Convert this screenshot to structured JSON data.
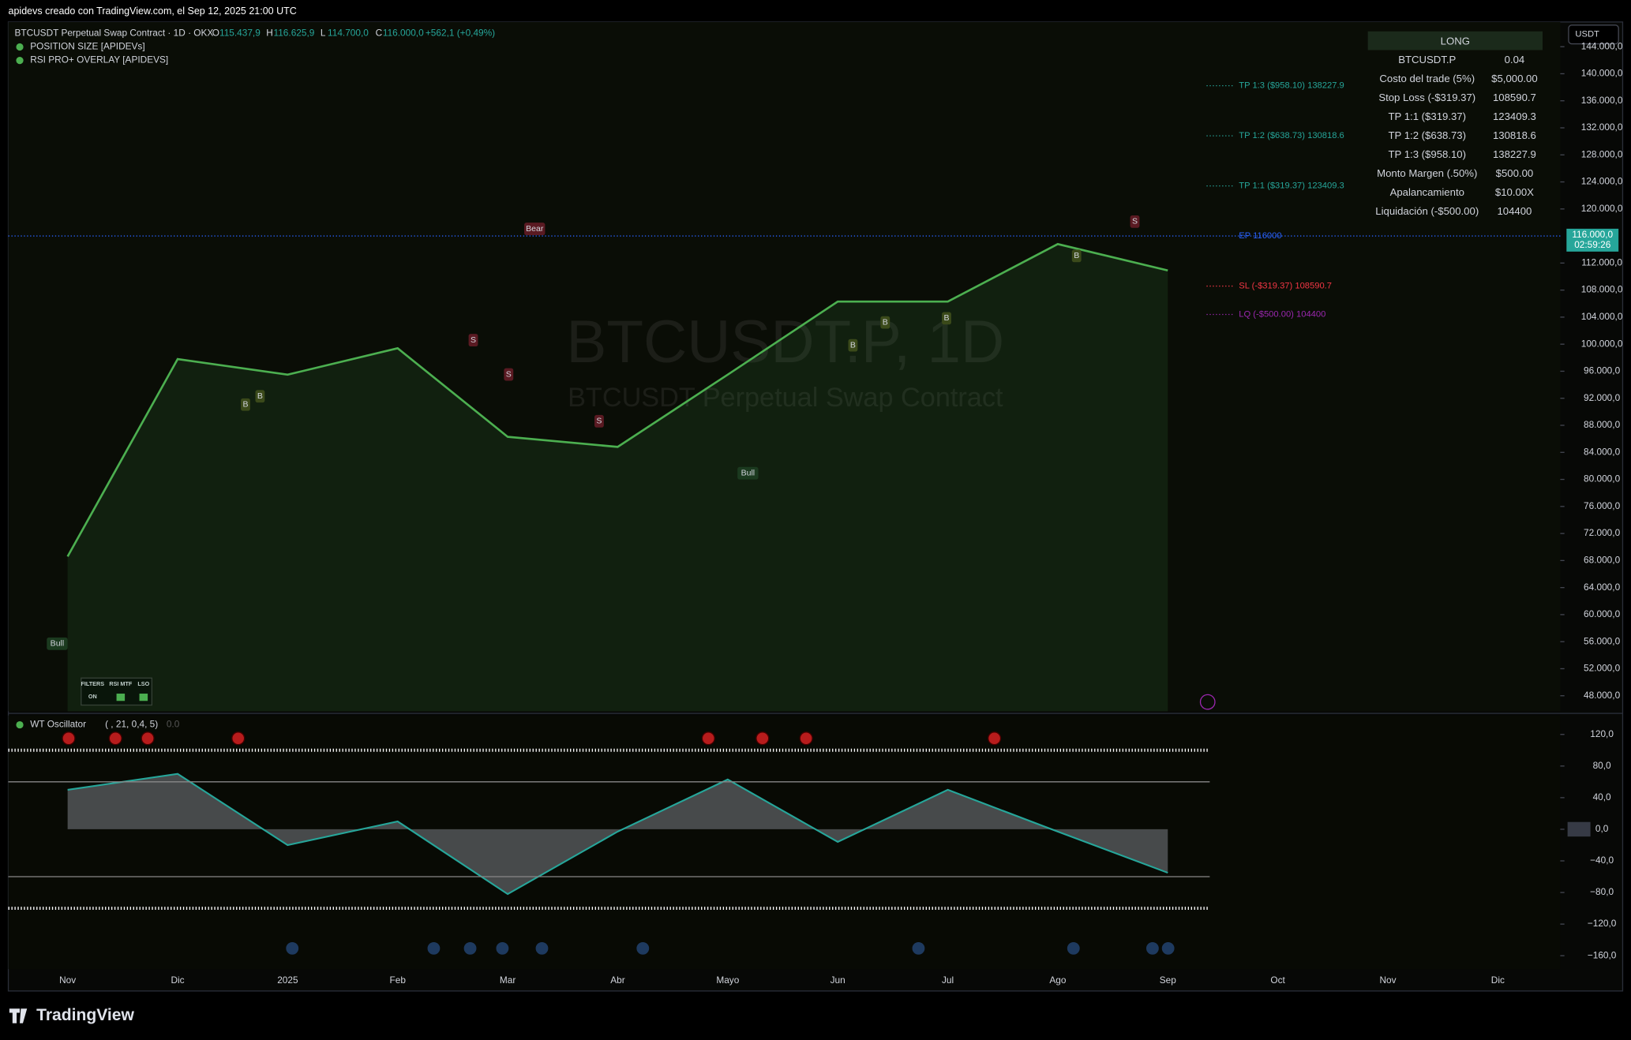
{
  "header": {
    "credit": "apidevs creado con TradingView.com, el Sep 12, 2025 21:00 UTC",
    "symbol": "BTCUSDT Perpetual Swap Contract · 1D · OKX",
    "ohlc": [
      [
        "O",
        "115.437,9"
      ],
      [
        "H",
        "116.625,9"
      ],
      [
        "L",
        "114.700,0"
      ],
      [
        "C",
        "116.000,0"
      ]
    ],
    "change": "+562,1 (+0,49%)",
    "indicators": [
      "POSITION SIZE [APIDEVs]",
      "RSI PRO+ OVERLAY [APIDEVS]"
    ],
    "currency": "USDT",
    "watermark": "BTCUSDT.P, 1D",
    "watermark_sub": "BTCUSDT Perpetual Swap Contract"
  },
  "table": {
    "title": "LONG",
    "rows": [
      [
        "BTCUSDT.P",
        "0.04"
      ],
      [
        "Costo del trade (5%)",
        "$5,000.00"
      ],
      [
        "Stop Loss (-$319.37)",
        "108590.7"
      ],
      [
        "TP 1:1 ($319.37)",
        "123409.3"
      ],
      [
        "TP 1:2 ($638.73)",
        "130818.6"
      ],
      [
        "TP 1:3 ($958.10)",
        "138227.9"
      ],
      [
        "Monto Margen (.50%)",
        "$500.00"
      ],
      [
        "Apalancamiento",
        "$10.00X"
      ],
      [
        "Liquidación (-$500.00)",
        "104400"
      ]
    ]
  },
  "filters": [
    "FILTERS",
    "RSI MTF",
    "LSO",
    "ON"
  ],
  "footer": "TradingView",
  "chart_data": [
    {
      "type": "line",
      "categories": [
        "Nov",
        "Dic",
        "2025",
        "Feb",
        "Mar",
        "Abr",
        "Mayo",
        "Jun",
        "Jul",
        "Ago",
        "Sep",
        "Oct",
        "Nov",
        "Dic"
      ],
      "values": [
        68600,
        97800,
        95500,
        99400,
        86300,
        84800,
        95500,
        106300,
        106300,
        114800,
        110900,
        null,
        null,
        null
      ],
      "color": "#4caf50",
      "ylim": [
        45700,
        147500
      ],
      "yticks": [
        {
          "value": 48000,
          "label": "48.000,0"
        },
        {
          "value": 52000,
          "label": "52.000,0"
        },
        {
          "value": 56000,
          "label": "56.000,0"
        },
        {
          "value": 60000,
          "label": "60.000,0"
        },
        {
          "value": 64000,
          "label": "64.000,0"
        },
        {
          "value": 68000,
          "label": "68.000,0"
        },
        {
          "value": 72000,
          "label": "72.000,0"
        },
        {
          "value": 76000,
          "label": "76.000,0"
        },
        {
          "value": 80000,
          "label": "80.000,0"
        },
        {
          "value": 84000,
          "label": "84.000,0"
        },
        {
          "value": 88000,
          "label": "88.000,0"
        },
        {
          "value": 92000,
          "label": "92.000,0"
        },
        {
          "value": 96000,
          "label": "96.000,0"
        },
        {
          "value": 100000,
          "label": "100.000,0"
        },
        {
          "value": 104000,
          "label": "104.000,0"
        },
        {
          "value": 108000,
          "label": "108.000,0"
        },
        {
          "value": 112000,
          "label": "112.000,0"
        },
        {
          "value": 120000,
          "label": "120.000,0"
        },
        {
          "value": 124000,
          "label": "124.000,0"
        },
        {
          "value": 128000,
          "label": "128.000,0"
        },
        {
          "value": 132000,
          "label": "132.000,0"
        },
        {
          "value": 136000,
          "label": "136.000,0"
        },
        {
          "value": 140000,
          "label": "140.000,0"
        },
        {
          "value": 144000,
          "label": "144.000,0"
        }
      ],
      "grid": false,
      "last_price": {
        "value": 116000,
        "label": "116.000,0"
      },
      "countdown": "02:59:26",
      "levels": [
        {
          "label": "TP 1:3 ($958.10) 138227.9",
          "value": 138227.9,
          "color": "#26a69a"
        },
        {
          "label": "TP 1:2 ($638.73) 130818.6",
          "value": 130818.6,
          "color": "#26a69a"
        },
        {
          "label": "TP 1:1 ($319.37) 123409.3",
          "value": 123409.3,
          "color": "#26a69a"
        },
        {
          "label": "EP 116000",
          "value": 116000,
          "color": "#2962ff"
        },
        {
          "label": "SL (-$319.37) 108590.7",
          "value": 108590.7,
          "color": "#f23645"
        },
        {
          "label": "LQ (-$500.00) 104400",
          "value": 104400,
          "color": "#9c27b0"
        }
      ],
      "signals": [
        "Bull",
        "Bear",
        "Bull",
        "S",
        "S",
        "S",
        "S",
        "B",
        "B",
        "B",
        "B",
        "B",
        "B"
      ]
    },
    {
      "type": "area",
      "title": "WT Oscillator",
      "params": "( , 21, 0,4, 5)",
      "readout": "0.0",
      "categories": [
        "Nov",
        "Dic",
        "2025",
        "Feb",
        "Mar",
        "Abr",
        "Mayo",
        "Jun",
        "Jul",
        "Ago",
        "Sep",
        "Oct",
        "Nov",
        "Dic"
      ],
      "values": [
        50,
        70,
        -20,
        10,
        -82,
        -3,
        63,
        -16,
        50,
        -3,
        -55,
        null,
        null,
        null
      ],
      "color": "#9598a1",
      "ylim": [
        -177,
        144
      ],
      "yticks": [
        {
          "value": 120,
          "label": "120,0"
        },
        {
          "value": 80,
          "label": "80,0"
        },
        {
          "value": 40,
          "label": "40,0"
        },
        {
          "value": 0,
          "label": "0,0"
        },
        {
          "value": -40,
          "label": "−40,0"
        },
        {
          "value": -80,
          "label": "−80,0"
        },
        {
          "value": -120,
          "label": "−120,0"
        },
        {
          "value": -160,
          "label": "−160,0"
        }
      ],
      "levels": [
        100,
        60,
        -60,
        -100
      ]
    }
  ]
}
